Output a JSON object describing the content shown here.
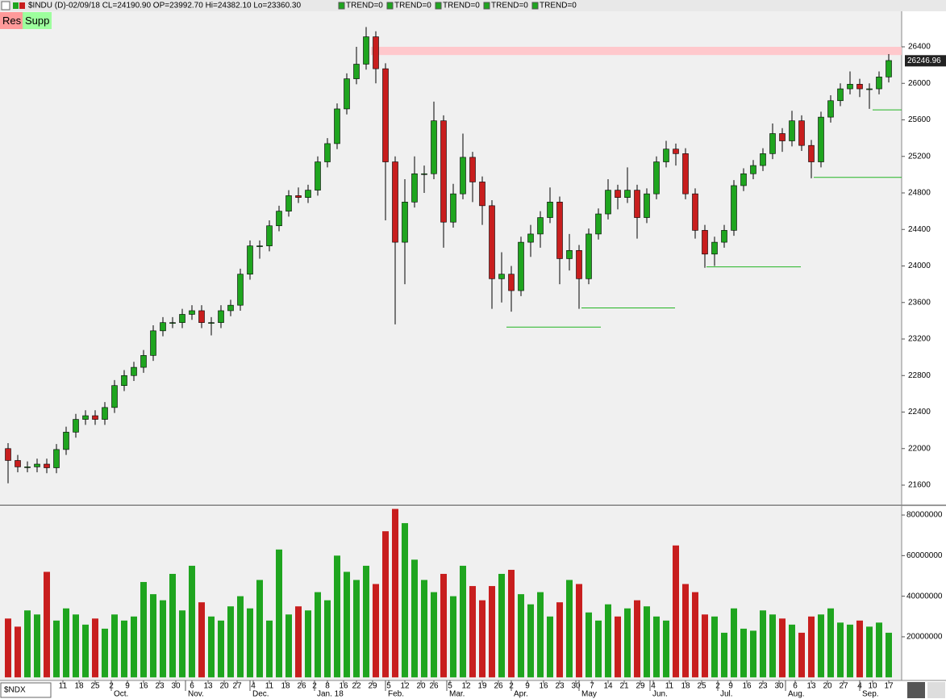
{
  "header": {
    "title": "$INDU (D)-02/09/18 CL=24190.90 OP=23992.70 Hi=24382.10 Lo=23360.30",
    "indicators": [
      "TREND=0",
      "TREND=0",
      "TREND=0",
      "TREND=0",
      "TREND=0"
    ]
  },
  "buttons": [
    "Res",
    "Supp"
  ],
  "symbol_box": "$NDX",
  "chart_data": [
    {
      "type": "candlestick",
      "up_color": "#1fa51f",
      "down_color": "#c81e1e",
      "xlim": [
        -2.5,
        277
      ],
      "ylim": [
        21388,
        26789
      ],
      "yticks": [
        21600,
        22000,
        22400,
        22800,
        23200,
        23600,
        24000,
        24400,
        24800,
        25200,
        25600,
        26000,
        26400
      ],
      "x": [
        0,
        3,
        6,
        9,
        12,
        15,
        18,
        21,
        24,
        27,
        30,
        33,
        36,
        39,
        42,
        45,
        48,
        51,
        54,
        57,
        60,
        63,
        66,
        69,
        72,
        75,
        78,
        81,
        84,
        87,
        90,
        93,
        96,
        99,
        102,
        105,
        108,
        111,
        114,
        117,
        120,
        123,
        126,
        129,
        132,
        135,
        138,
        141,
        144,
        147,
        150,
        153,
        156,
        159,
        162,
        165,
        168,
        171,
        174,
        177,
        180,
        183,
        186,
        189,
        192,
        195,
        198,
        201,
        204,
        207,
        210,
        213,
        216,
        219,
        222,
        225,
        228,
        231,
        234,
        237,
        240,
        243,
        246,
        249,
        252,
        255,
        258,
        261,
        264,
        267,
        270,
        273
      ],
      "open": [
        22000,
        21870,
        21800,
        21800,
        21830,
        21790,
        21990,
        22180,
        22320,
        22360,
        22320,
        22450,
        22690,
        22800,
        22890,
        23020,
        23290,
        23380,
        23380,
        23470,
        23510,
        23380,
        23380,
        23510,
        23570,
        23910,
        24220,
        24220,
        24440,
        24600,
        24770,
        24750,
        24830,
        25140,
        25340,
        25720,
        26050,
        26210,
        26510,
        26160,
        25140,
        24260,
        24700,
        25010,
        25010,
        25590,
        24480,
        24790,
        25190,
        24920,
        24660,
        23860,
        23910,
        23730,
        24260,
        24350,
        24530,
        24700,
        24080,
        24170,
        23860,
        24350,
        24570,
        24830,
        24750,
        24830,
        24530,
        24790,
        25140,
        25280,
        25230,
        24790,
        24390,
        24130,
        24260,
        24390,
        24880,
        25010,
        25100,
        25230,
        25450,
        25370,
        25590,
        25320,
        25140,
        25630,
        25810,
        25940,
        25990,
        25940,
        25940,
        26070
      ],
      "high": [
        22060,
        21930,
        21860,
        21890,
        21890,
        22050,
        22240,
        22380,
        22420,
        22420,
        22510,
        22750,
        22860,
        22950,
        23080,
        23350,
        23440,
        23440,
        23530,
        23570,
        23570,
        23440,
        23570,
        23630,
        23970,
        24280,
        24280,
        24500,
        24660,
        24830,
        24860,
        24890,
        25200,
        25400,
        25780,
        26110,
        26400,
        26617,
        26570,
        26220,
        25200,
        24950,
        25200,
        25100,
        25800,
        25650,
        24900,
        25450,
        25250,
        24980,
        24720,
        24150,
        24000,
        24320,
        24450,
        24600,
        24860,
        24760,
        24350,
        24230,
        24410,
        24630,
        24950,
        24890,
        25080,
        24890,
        24850,
        25200,
        25370,
        25340,
        25290,
        24850,
        24450,
        24320,
        24450,
        24940,
        25070,
        25160,
        25290,
        25560,
        25510,
        25700,
        25650,
        25380,
        25690,
        25870,
        26000,
        26130,
        26050,
        26000,
        26130,
        26320
      ],
      "low": [
        21620,
        21740,
        21740,
        21740,
        21730,
        21730,
        21930,
        22120,
        22260,
        22260,
        22260,
        22390,
        22630,
        22740,
        22830,
        22960,
        23230,
        23320,
        23320,
        23410,
        23320,
        23240,
        23320,
        23450,
        23510,
        23850,
        24080,
        24160,
        24380,
        24540,
        24690,
        24690,
        24770,
        25080,
        25280,
        25660,
        25990,
        26150,
        26000,
        24500,
        23360,
        23800,
        24640,
        24800,
        24950,
        24200,
        24420,
        24730,
        24700,
        24450,
        23530,
        23600,
        23500,
        23670,
        24100,
        24200,
        24470,
        23800,
        23950,
        23530,
        23800,
        24290,
        24510,
        24620,
        24690,
        24300,
        24470,
        24730,
        25080,
        25100,
        24730,
        24300,
        23980,
        24000,
        24200,
        24330,
        24820,
        24950,
        25040,
        25170,
        25250,
        25310,
        25260,
        24960,
        25080,
        25570,
        25750,
        25880,
        25850,
        25720,
        25880,
        26010
      ],
      "close": [
        21870,
        21800,
        21800,
        21830,
        21790,
        21990,
        22180,
        22320,
        22360,
        22320,
        22450,
        22690,
        22800,
        22890,
        23020,
        23290,
        23380,
        23380,
        23470,
        23510,
        23380,
        23380,
        23510,
        23570,
        23910,
        24220,
        24220,
        24440,
        24600,
        24770,
        24750,
        24830,
        25140,
        25340,
        25720,
        26050,
        26210,
        26510,
        26160,
        25140,
        24260,
        24700,
        25010,
        25010,
        25590,
        24480,
        24790,
        25190,
        24920,
        24660,
        23860,
        23910,
        23730,
        24260,
        24350,
        24530,
        24700,
        24080,
        24170,
        23860,
        24350,
        24570,
        24830,
        24750,
        24830,
        24530,
        24790,
        25140,
        25280,
        25230,
        24790,
        24390,
        24130,
        24260,
        24390,
        24880,
        25010,
        25100,
        25230,
        25450,
        25370,
        25590,
        25320,
        25140,
        25630,
        25810,
        25940,
        25990,
        25940,
        25940,
        26070,
        26250
      ],
      "last_price": 26246.96,
      "resistance": {
        "color": "#ffc8cc",
        "x": [
          112.5,
          277
        ],
        "y": [
          26310,
          26400
        ]
      },
      "support_color": "#22b422",
      "support_lines": [
        {
          "x": [
            154.5,
            183.75
          ],
          "y": 23330
        },
        {
          "x": [
            177.75,
            206.75
          ],
          "y": 23540
        },
        {
          "x": [
            216.5,
            245.75
          ],
          "y": 23990
        },
        {
          "x": [
            249.75,
            277
          ],
          "y": 24970
        },
        {
          "x": [
            268,
            277
          ],
          "y": 25710
        }
      ]
    },
    {
      "type": "volume",
      "xlim": [
        -2.5,
        277
      ],
      "ylim": [
        -1500000,
        84000000
      ],
      "yticks": [
        20000000,
        40000000,
        60000000,
        80000000
      ],
      "values": [
        29000000,
        25000000,
        33000000,
        31000000,
        52000000,
        28000000,
        34000000,
        31000000,
        26000000,
        29000000,
        24000000,
        31000000,
        28000000,
        30000000,
        47000000,
        41000000,
        38000000,
        51000000,
        33000000,
        55000000,
        37000000,
        30000000,
        28000000,
        35000000,
        40000000,
        34000000,
        48000000,
        28000000,
        63000000,
        31000000,
        35000000,
        33000000,
        42000000,
        38000000,
        60000000,
        52000000,
        48000000,
        55000000,
        46000000,
        72000000,
        83000000,
        76000000,
        58000000,
        48000000,
        42000000,
        51000000,
        40000000,
        55000000,
        45000000,
        38000000,
        45000000,
        51000000,
        53000000,
        41000000,
        36000000,
        42000000,
        30000000,
        37000000,
        48000000,
        46000000,
        32000000,
        28000000,
        36000000,
        30000000,
        34000000,
        38000000,
        35000000,
        30000000,
        28000000,
        65000000,
        46000000,
        42000000,
        31000000,
        30000000,
        22000000,
        34000000,
        24000000,
        23000000,
        33000000,
        31000000,
        29000000,
        26000000,
        22000000,
        30000000,
        31000000,
        34000000,
        27000000,
        26000000,
        28000000,
        25000000,
        27000000,
        22000000
      ],
      "xticks": [
        {
          "value": 17,
          "label": "11"
        },
        {
          "value": 22,
          "label": "18"
        },
        {
          "value": 27,
          "label": "25"
        },
        {
          "value": 32,
          "label": "2"
        },
        {
          "value": 37,
          "label": "9"
        },
        {
          "value": 42,
          "label": "16"
        },
        {
          "value": 47,
          "label": "23"
        },
        {
          "value": 52,
          "label": "30"
        },
        {
          "value": 57,
          "label": "6"
        },
        {
          "value": 62,
          "label": "13"
        },
        {
          "value": 67,
          "label": "20"
        },
        {
          "value": 71,
          "label": "27"
        },
        {
          "value": 76,
          "label": "4"
        },
        {
          "value": 81,
          "label": "11"
        },
        {
          "value": 86,
          "label": "18"
        },
        {
          "value": 91,
          "label": "26"
        },
        {
          "value": 95,
          "label": "2"
        },
        {
          "value": 99,
          "label": "8"
        },
        {
          "value": 104,
          "label": "16"
        },
        {
          "value": 108,
          "label": "22"
        },
        {
          "value": 113,
          "label": "29"
        },
        {
          "value": 118,
          "label": "5"
        },
        {
          "value": 123,
          "label": "12"
        },
        {
          "value": 128,
          "label": "20"
        },
        {
          "value": 132,
          "label": "26"
        },
        {
          "value": 137,
          "label": "5"
        },
        {
          "value": 142,
          "label": "12"
        },
        {
          "value": 147,
          "label": "19"
        },
        {
          "value": 152,
          "label": "26"
        },
        {
          "value": 156,
          "label": "2"
        },
        {
          "value": 161,
          "label": "9"
        },
        {
          "value": 166,
          "label": "16"
        },
        {
          "value": 171,
          "label": "23"
        },
        {
          "value": 176,
          "label": "30"
        },
        {
          "value": 181,
          "label": "7"
        },
        {
          "value": 186,
          "label": "14"
        },
        {
          "value": 191,
          "label": "21"
        },
        {
          "value": 196,
          "label": "29"
        },
        {
          "value": 200,
          "label": "4"
        },
        {
          "value": 205,
          "label": "11"
        },
        {
          "value": 210,
          "label": "18"
        },
        {
          "value": 215,
          "label": "25"
        },
        {
          "value": 220,
          "label": "2"
        },
        {
          "value": 224,
          "label": "9"
        },
        {
          "value": 229,
          "label": "16"
        },
        {
          "value": 234,
          "label": "23"
        },
        {
          "value": 239,
          "label": "30"
        },
        {
          "value": 244,
          "label": "6"
        },
        {
          "value": 249,
          "label": "13"
        },
        {
          "value": 254,
          "label": "20"
        },
        {
          "value": 259,
          "label": "27"
        },
        {
          "value": 264,
          "label": "4"
        },
        {
          "value": 268,
          "label": "10"
        },
        {
          "value": 273,
          "label": "17"
        }
      ],
      "month_ticks": [
        {
          "value": 32,
          "label": "Oct."
        },
        {
          "value": 55,
          "label": "Nov."
        },
        {
          "value": 75,
          "label": "Dec."
        },
        {
          "value": 95,
          "label": "Jan. 18"
        },
        {
          "value": 117,
          "label": "Feb."
        },
        {
          "value": 136,
          "label": "Mar."
        },
        {
          "value": 156,
          "label": "Apr."
        },
        {
          "value": 177,
          "label": "May"
        },
        {
          "value": 199,
          "label": "Jun."
        },
        {
          "value": 220,
          "label": "Jul."
        },
        {
          "value": 241,
          "label": "Aug."
        },
        {
          "value": 264,
          "label": "Sep."
        }
      ]
    }
  ]
}
